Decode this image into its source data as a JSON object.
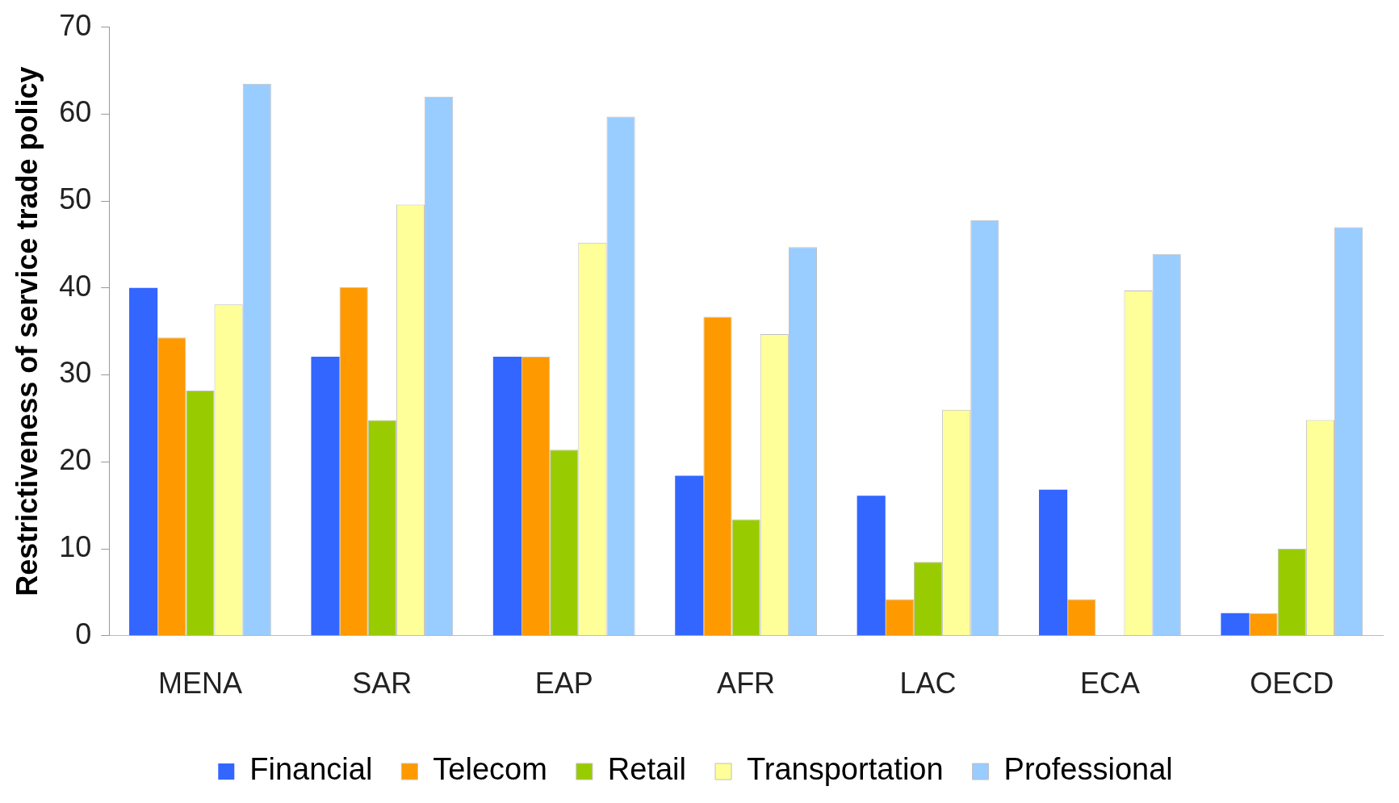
{
  "chart_data": {
    "type": "bar",
    "ylabel": "Restrictiveness of service trade policy",
    "categories": [
      "MENA",
      "SAR",
      "EAP",
      "AFR",
      "LAC",
      "ECA",
      "OECD"
    ],
    "series": [
      {
        "name": "Financial",
        "color": "#3366ff",
        "values": [
          40,
          32.1,
          32.1,
          18.4,
          16.1,
          16.8,
          2.6
        ]
      },
      {
        "name": "Telecom",
        "color": "#ff9900",
        "values": [
          34.3,
          40.1,
          32.1,
          36.7,
          4.2,
          4.2,
          2.6
        ]
      },
      {
        "name": "Retail",
        "color": "#99cc00",
        "values": [
          28.2,
          24.8,
          21.4,
          13.4,
          8.5,
          0,
          10
        ]
      },
      {
        "name": "Transportation",
        "color": "#ffff99",
        "values": [
          38.1,
          49.6,
          45.2,
          34.7,
          26,
          39.7,
          24.8
        ]
      },
      {
        "name": "Professional",
        "color": "#99ccff",
        "values": [
          63.5,
          62,
          59.7,
          44.7,
          47.8,
          43.9,
          47
        ]
      }
    ],
    "ylim": [
      0,
      70
    ],
    "yticks": [
      0,
      10,
      20,
      30,
      40,
      50,
      60,
      70
    ],
    "grid": false,
    "legend": "bottom"
  }
}
